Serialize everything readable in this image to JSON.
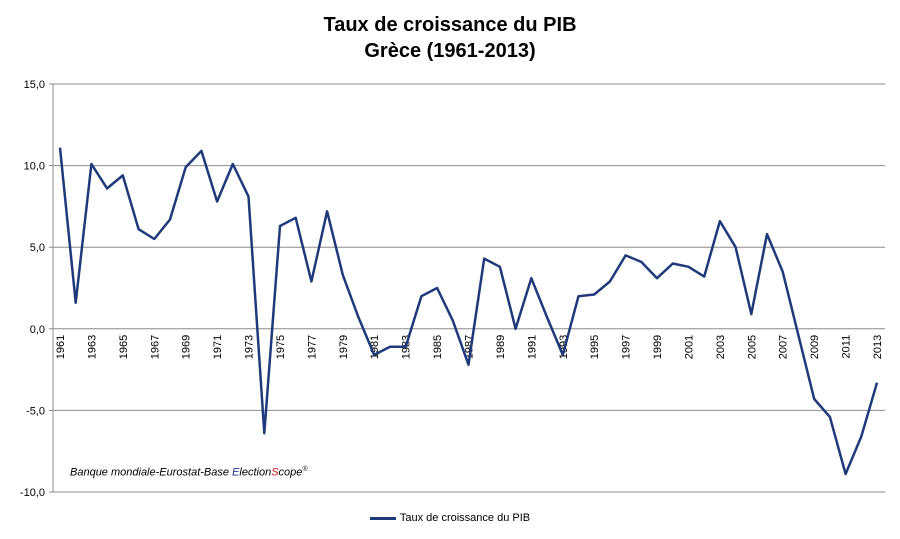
{
  "chart_data": {
    "type": "line",
    "title": "Taux de croissance du PIB",
    "subtitle": "Grèce (1961-2013)",
    "y_tick_labels": [
      "15,0",
      "10,0",
      "5,0",
      "0,0",
      "-5,0",
      "-10,0"
    ],
    "y_ticks": [
      15,
      10,
      5,
      0,
      -5,
      -10
    ],
    "ylim": [
      -10,
      15
    ],
    "x_tick_labels": [
      "1961",
      "1963",
      "1965",
      "1967",
      "1969",
      "1971",
      "1973",
      "1975",
      "1977",
      "1979",
      "1981",
      "1983",
      "1985",
      "1987",
      "1989",
      "1991",
      "1993",
      "1995",
      "1997",
      "1999",
      "2001",
      "2003",
      "2005",
      "2007",
      "2009",
      "2011",
      "2013"
    ],
    "grid": true,
    "legend_position": "bottom",
    "line_color": "#1f3a7a",
    "series": [
      {
        "name": "Taux de croissance du PIB",
        "x": [
          1961,
          1962,
          1963,
          1964,
          1965,
          1966,
          1967,
          1968,
          1969,
          1970,
          1971,
          1972,
          1973,
          1974,
          1975,
          1976,
          1977,
          1978,
          1979,
          1980,
          1981,
          1982,
          1983,
          1984,
          1985,
          1986,
          1987,
          1988,
          1989,
          1990,
          1991,
          1992,
          1993,
          1994,
          1995,
          1996,
          1997,
          1998,
          1999,
          2000,
          2001,
          2002,
          2003,
          2004,
          2005,
          2006,
          2007,
          2008,
          2009,
          2010,
          2011,
          2012,
          2013
        ],
        "values": [
          11.1,
          1.6,
          10.1,
          8.6,
          9.4,
          6.1,
          5.5,
          6.7,
          9.9,
          10.9,
          7.8,
          10.1,
          8.1,
          -6.4,
          6.3,
          6.8,
          2.9,
          7.2,
          3.3,
          0.7,
          -1.6,
          -1.1,
          -1.1,
          2.0,
          2.5,
          0.5,
          -2.2,
          4.3,
          3.8,
          0.0,
          3.1,
          0.7,
          -1.6,
          2.0,
          2.1,
          2.9,
          4.5,
          4.1,
          3.1,
          4.0,
          3.8,
          3.2,
          6.6,
          5.0,
          0.9,
          5.8,
          3.5,
          -0.4,
          -4.3,
          -5.4,
          -8.9,
          -6.6,
          -3.3
        ]
      }
    ],
    "source_text": {
      "prefix": "Banque mondiale-Eurostat-Base ",
      "e_letter": "E",
      "lection": "lection",
      "s_letter": "S",
      "cope": "cope",
      "mark": "®"
    }
  }
}
